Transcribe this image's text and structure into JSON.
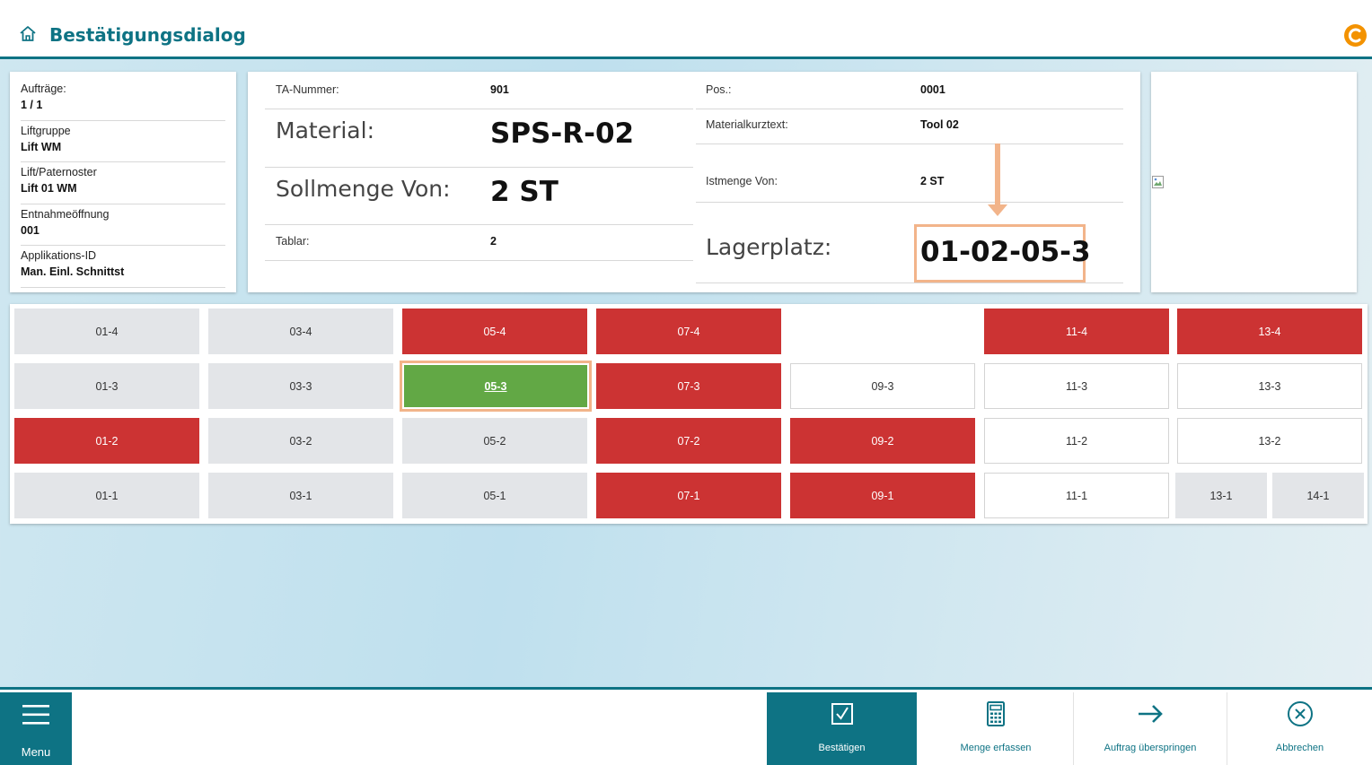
{
  "header": {
    "title": "Bestätigungsdialog"
  },
  "info": [
    {
      "label": "Aufträge:",
      "value": "1 / 1"
    },
    {
      "label": "Liftgruppe",
      "value": "Lift WM"
    },
    {
      "label": "Lift/Paternoster",
      "value": "Lift 01 WM"
    },
    {
      "label": "Entnahmeöffnung",
      "value": "001"
    },
    {
      "label": "Applikations-ID",
      "value": "Man. Einl. Schnittst"
    }
  ],
  "details": {
    "ta_nummer": {
      "label": "TA-Nummer:",
      "value": "901"
    },
    "pos": {
      "label": "Pos.:",
      "value": "0001"
    },
    "material": {
      "label": "Material:",
      "value": "SPS-R-02"
    },
    "materialkurztext": {
      "label": "Materialkurztext:",
      "value": "Tool 02"
    },
    "sollmenge": {
      "label": "Sollmenge Von:",
      "value": "2 ST"
    },
    "istmenge": {
      "label": "Istmenge Von:",
      "value": "2 ST"
    },
    "tablar": {
      "label": "Tablar:",
      "value": "2"
    },
    "lagerplatz": {
      "label": "Lagerplatz:",
      "value": "01-02-05-3"
    }
  },
  "grid": {
    "cells": [
      {
        "label": "01-4",
        "state": "gray"
      },
      {
        "label": "03-4",
        "state": "gray"
      },
      {
        "label": "05-4",
        "state": "red"
      },
      {
        "label": "07-4",
        "state": "red"
      },
      {
        "label": "11-4",
        "state": "red"
      },
      {
        "label": "13-4",
        "state": "red"
      },
      {
        "label": "01-3",
        "state": "gray"
      },
      {
        "label": "03-3",
        "state": "gray"
      },
      {
        "label": "05-3",
        "state": "selected"
      },
      {
        "label": "07-3",
        "state": "red"
      },
      {
        "label": "09-3",
        "state": "white"
      },
      {
        "label": "11-3",
        "state": "white"
      },
      {
        "label": "13-3",
        "state": "white"
      },
      {
        "label": "01-2",
        "state": "red"
      },
      {
        "label": "03-2",
        "state": "gray"
      },
      {
        "label": "05-2",
        "state": "gray"
      },
      {
        "label": "07-2",
        "state": "red"
      },
      {
        "label": "09-2",
        "state": "red"
      },
      {
        "label": "11-2",
        "state": "white"
      },
      {
        "label": "13-2",
        "state": "white"
      },
      {
        "label": "01-1",
        "state": "gray"
      },
      {
        "label": "03-1",
        "state": "gray"
      },
      {
        "label": "05-1",
        "state": "gray"
      },
      {
        "label": "07-1",
        "state": "red"
      },
      {
        "label": "09-1",
        "state": "red"
      },
      {
        "label": "11-1",
        "state": "white"
      },
      {
        "label": "13-1",
        "state": "gray"
      },
      {
        "label": "14-1",
        "state": "gray"
      }
    ]
  },
  "footer": {
    "menu_label": "Menu",
    "confirm_label": "Bestätigen",
    "quantity_label": "Menge erfassen",
    "skip_label": "Auftrag überspringen",
    "cancel_label": "Abbrechen"
  },
  "colors": {
    "accent": "#0e7384",
    "occupied": "#cc3333",
    "selected": "#62a845",
    "highlight": "#f2b48a"
  },
  "icons": [
    "home-icon",
    "brand-logo-icon",
    "broken-image-icon",
    "hamburger-icon",
    "checkbox-icon",
    "calculator-icon",
    "arrow-right-icon",
    "close-circle-icon"
  ]
}
